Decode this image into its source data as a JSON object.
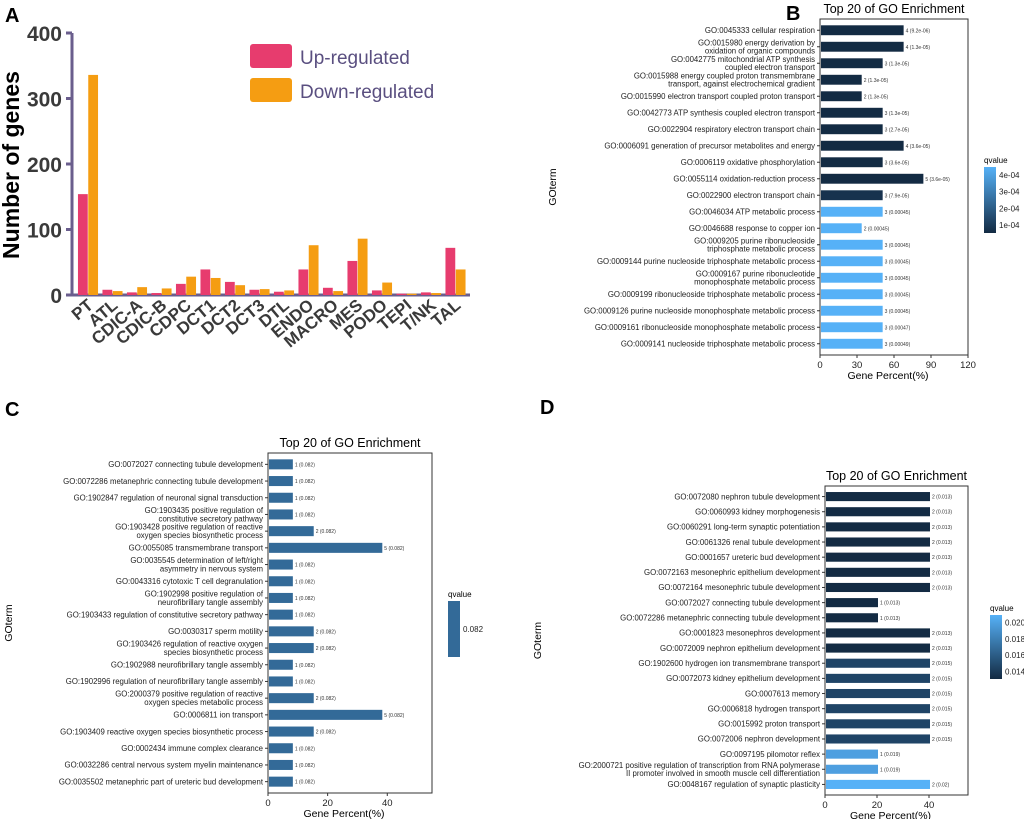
{
  "chart_data": [
    {
      "panel": "A",
      "type": "bar",
      "title": "",
      "xlabel": "",
      "ylabel": "Number of genes",
      "ylim": [
        0,
        400
      ],
      "yticks": [
        "0",
        "100",
        "200",
        "300",
        "400"
      ],
      "categories": [
        "PT",
        "ATL",
        "CDIC-A",
        "CDIC-B",
        "CDPC",
        "DCT1",
        "DCT2",
        "DCT3",
        "DTL",
        "ENDO",
        "MACRO",
        "MES",
        "PODO",
        "TEPI",
        "T/NK",
        "TAL"
      ],
      "series": [
        {
          "name": "Up-regulated",
          "color": "#e73c6e",
          "values": [
            154,
            8,
            4,
            3,
            17,
            39,
            20,
            8,
            5,
            39,
            11,
            52,
            7,
            2,
            4,
            72
          ]
        },
        {
          "name": "Down-regulated",
          "color": "#f59d12",
          "values": [
            336,
            6,
            12,
            10,
            28,
            26,
            15,
            9,
            7,
            76,
            6,
            86,
            19,
            2,
            3,
            39
          ]
        }
      ],
      "legend": "top-right"
    },
    {
      "panel": "B",
      "type": "bar",
      "orientation": "horizontal",
      "title": "Top 20 of GO Enrichment",
      "xlabel": "Gene Percent(%)",
      "ylabel": "GOterm",
      "xlim": [
        0,
        120
      ],
      "xticks": [
        "0",
        "30",
        "60",
        "90",
        "120"
      ],
      "legend_title": "qvalue",
      "legend_ticks": [
        "4e-04",
        "3e-04",
        "2e-04",
        "1e-04"
      ],
      "legend_colors": [
        "#56b1f7",
        "#132b43"
      ],
      "terms": [
        {
          "label": [
            "GO:0045333 cellular respiration"
          ],
          "value": 67,
          "annot": "4 (9.2e-06)",
          "color": "#132b43"
        },
        {
          "label": [
            "GO:0015980 energy derivation by",
            "oxidation of organic compounds"
          ],
          "value": 67,
          "annot": "4 (1.3e-05)",
          "color": "#132b43"
        },
        {
          "label": [
            "GO:0042775 mitochondrial ATP synthesis",
            "coupled electron transport"
          ],
          "value": 50,
          "annot": "3 (1.3e-05)",
          "color": "#132b43"
        },
        {
          "label": [
            "GO:0015988 energy coupled proton transmembrane",
            "transport, against electrochemical gradient"
          ],
          "value": 33,
          "annot": "2 (1.3e-05)",
          "color": "#132b43"
        },
        {
          "label": [
            "GO:0015990 electron transport coupled proton transport"
          ],
          "value": 33,
          "annot": "2 (1.3e-05)",
          "color": "#132b43"
        },
        {
          "label": [
            "GO:0042773 ATP synthesis coupled electron transport"
          ],
          "value": 50,
          "annot": "3 (1.3e-05)",
          "color": "#132b43"
        },
        {
          "label": [
            "GO:0022904 respiratory electron transport chain"
          ],
          "value": 50,
          "annot": "3 (2.7e-05)",
          "color": "#132b43"
        },
        {
          "label": [
            "GO:0006091 generation of precursor metabolites and energy"
          ],
          "value": 67,
          "annot": "4 (3.6e-05)",
          "color": "#132b43"
        },
        {
          "label": [
            "GO:0006119 oxidative phosphorylation"
          ],
          "value": 50,
          "annot": "3 (3.6e-05)",
          "color": "#132b43"
        },
        {
          "label": [
            "GO:0055114 oxidation-reduction process"
          ],
          "value": 83,
          "annot": "5 (3.6e-05)",
          "color": "#132b43"
        },
        {
          "label": [
            "GO:0022900 electron transport chain"
          ],
          "value": 50,
          "annot": "3 (7.9e-05)",
          "color": "#17324e"
        },
        {
          "label": [
            "GO:0046034 ATP metabolic process"
          ],
          "value": 50,
          "annot": "3 (0.00045)",
          "color": "#56b1f7"
        },
        {
          "label": [
            "GO:0046688 response to copper ion"
          ],
          "value": 33,
          "annot": "2 (0.00045)",
          "color": "#56b1f7"
        },
        {
          "label": [
            "GO:0009205 purine ribonucleoside",
            "triphosphate metabolic process"
          ],
          "value": 50,
          "annot": "3 (0.00045)",
          "color": "#56b1f7"
        },
        {
          "label": [
            "GO:0009144 purine nucleoside triphosphate metabolic process"
          ],
          "value": 50,
          "annot": "3 (0.00045)",
          "color": "#56b1f7"
        },
        {
          "label": [
            "GO:0009167 purine ribonucleotide",
            "monophosphate metabolic process"
          ],
          "value": 50,
          "annot": "3 (0.00045)",
          "color": "#56b1f7"
        },
        {
          "label": [
            "GO:0009199 ribonucleoside triphosphate metabolic process"
          ],
          "value": 50,
          "annot": "3 (0.00045)",
          "color": "#56b1f7"
        },
        {
          "label": [
            "GO:0009126 purine nucleoside monophosphate metabolic process"
          ],
          "value": 50,
          "annot": "3 (0.00045)",
          "color": "#56b1f7"
        },
        {
          "label": [
            "GO:0009161 ribonucleoside monophosphate metabolic process"
          ],
          "value": 50,
          "annot": "3 (0.00047)",
          "color": "#56b1f7"
        },
        {
          "label": [
            "GO:0009141 nucleoside triphosphate metabolic process"
          ],
          "value": 50,
          "annot": "3 (0.00049)",
          "color": "#56b1f7"
        }
      ]
    },
    {
      "panel": "C",
      "type": "bar",
      "orientation": "horizontal",
      "title": "Top 20 of GO Enrichment",
      "xlabel": "Gene Percent(%)",
      "ylabel": "GOterm",
      "xlim": [
        0,
        55
      ],
      "xticks": [
        "0",
        "20",
        "40"
      ],
      "legend_title": "qvalue",
      "legend_ticks": [
        "0.082"
      ],
      "legend_colors": [
        "#336a98",
        "#336a98"
      ],
      "terms": [
        {
          "label": [
            "GO:0072027 connecting tubule development"
          ],
          "value": 8,
          "annot": "1 (0.082)",
          "color": "#336a98"
        },
        {
          "label": [
            "GO:0072286 metanephric connecting tubule development"
          ],
          "value": 8,
          "annot": "1 (0.082)",
          "color": "#336a98"
        },
        {
          "label": [
            "GO:1902847 regulation of neuronal signal transduction"
          ],
          "value": 8,
          "annot": "1 (0.082)",
          "color": "#336a98"
        },
        {
          "label": [
            "GO:1903435 positive regulation of",
            "constitutive secretory pathway"
          ],
          "value": 8,
          "annot": "1 (0.082)",
          "color": "#336a98"
        },
        {
          "label": [
            "GO:1903428 positive regulation of reactive",
            "oxygen species biosynthetic process"
          ],
          "value": 15,
          "annot": "2 (0.082)",
          "color": "#336a98"
        },
        {
          "label": [
            "GO:0055085 transmembrane transport"
          ],
          "value": 38,
          "annot": "5 (0.082)",
          "color": "#336a98"
        },
        {
          "label": [
            "GO:0035545 determination of left/right",
            "asymmetry in nervous system"
          ],
          "value": 8,
          "annot": "1 (0.082)",
          "color": "#336a98"
        },
        {
          "label": [
            "GO:0043316 cytotoxic T cell degranulation"
          ],
          "value": 8,
          "annot": "1 (0.082)",
          "color": "#336a98"
        },
        {
          "label": [
            "GO:1902998 positive regulation of",
            "neurofibrillary tangle assembly"
          ],
          "value": 8,
          "annot": "1 (0.082)",
          "color": "#336a98"
        },
        {
          "label": [
            "GO:1903433 regulation of constitutive secretory pathway"
          ],
          "value": 8,
          "annot": "1 (0.082)",
          "color": "#336a98"
        },
        {
          "label": [
            "GO:0030317 sperm motility"
          ],
          "value": 15,
          "annot": "2 (0.082)",
          "color": "#336a98"
        },
        {
          "label": [
            "GO:1903426 regulation of reactive oxygen",
            "species biosynthetic process"
          ],
          "value": 15,
          "annot": "2 (0.082)",
          "color": "#336a98"
        },
        {
          "label": [
            "GO:1902988 neurofibrillary tangle assembly"
          ],
          "value": 8,
          "annot": "1 (0.082)",
          "color": "#336a98"
        },
        {
          "label": [
            "GO:1902996 regulation of neurofibrillary tangle assembly"
          ],
          "value": 8,
          "annot": "1 (0.082)",
          "color": "#336a98"
        },
        {
          "label": [
            "GO:2000379 positive regulation of reactive",
            "oxygen species metabolic process"
          ],
          "value": 15,
          "annot": "2 (0.082)",
          "color": "#336a98"
        },
        {
          "label": [
            "GO:0006811 ion transport"
          ],
          "value": 38,
          "annot": "5 (0.082)",
          "color": "#336a98"
        },
        {
          "label": [
            "GO:1903409 reactive oxygen species biosynthetic process"
          ],
          "value": 15,
          "annot": "2 (0.082)",
          "color": "#336a98"
        },
        {
          "label": [
            "GO:0002434 immune complex clearance"
          ],
          "value": 8,
          "annot": "1 (0.082)",
          "color": "#336a98"
        },
        {
          "label": [
            "GO:0032286 central nervous system myelin maintenance"
          ],
          "value": 8,
          "annot": "1 (0.082)",
          "color": "#336a98"
        },
        {
          "label": [
            "GO:0035502 metanephric part of ureteric bud development"
          ],
          "value": 8,
          "annot": "1 (0.082)",
          "color": "#336a98"
        }
      ]
    },
    {
      "panel": "D",
      "type": "bar",
      "orientation": "horizontal",
      "title": "Top 20 of GO Enrichment",
      "xlabel": "Gene Percent(%)",
      "ylabel": "GOterm",
      "xlim": [
        0,
        55
      ],
      "xticks": [
        "0",
        "20",
        "40"
      ],
      "legend_title": "qvalue",
      "legend_ticks": [
        "0.020",
        "0.018",
        "0.016",
        "0.014"
      ],
      "legend_colors": [
        "#56b1f7",
        "#132b43"
      ],
      "terms": [
        {
          "label": [
            "GO:0072080 nephron tubule development"
          ],
          "value": 40,
          "annot": "2 (0.013)",
          "color": "#132b43"
        },
        {
          "label": [
            "GO:0060993 kidney morphogenesis"
          ],
          "value": 40,
          "annot": "2 (0.013)",
          "color": "#132b43"
        },
        {
          "label": [
            "GO:0060291 long-term synaptic potentiation"
          ],
          "value": 40,
          "annot": "2 (0.013)",
          "color": "#132b43"
        },
        {
          "label": [
            "GO:0061326 renal tubule development"
          ],
          "value": 40,
          "annot": "2 (0.013)",
          "color": "#132b43"
        },
        {
          "label": [
            "GO:0001657 ureteric bud development"
          ],
          "value": 40,
          "annot": "2 (0.013)",
          "color": "#132b43"
        },
        {
          "label": [
            "GO:0072163 mesonephric epithelium development"
          ],
          "value": 40,
          "annot": "2 (0.013)",
          "color": "#132b43"
        },
        {
          "label": [
            "GO:0072164 mesonephric tubule development"
          ],
          "value": 40,
          "annot": "2 (0.013)",
          "color": "#132b43"
        },
        {
          "label": [
            "GO:0072027 connecting tubule development"
          ],
          "value": 20,
          "annot": "1 (0.013)",
          "color": "#132b43"
        },
        {
          "label": [
            "GO:0072286 metanephric connecting tubule development"
          ],
          "value": 20,
          "annot": "1 (0.013)",
          "color": "#132b43"
        },
        {
          "label": [
            "GO:0001823 mesonephros development"
          ],
          "value": 40,
          "annot": "2 (0.013)",
          "color": "#132b43"
        },
        {
          "label": [
            "GO:0072009 nephron epithelium development"
          ],
          "value": 40,
          "annot": "2 (0.013)",
          "color": "#132b43"
        },
        {
          "label": [
            "GO:1902600 hydrogen ion transmembrane transport"
          ],
          "value": 40,
          "annot": "2 (0.015)",
          "color": "#1f4466"
        },
        {
          "label": [
            "GO:0072073 kidney epithelium development"
          ],
          "value": 40,
          "annot": "2 (0.015)",
          "color": "#1f4466"
        },
        {
          "label": [
            "GO:0007613 memory"
          ],
          "value": 40,
          "annot": "2 (0.015)",
          "color": "#1f4466"
        },
        {
          "label": [
            "GO:0006818 hydrogen transport"
          ],
          "value": 40,
          "annot": "2 (0.015)",
          "color": "#1f4466"
        },
        {
          "label": [
            "GO:0015992 proton transport"
          ],
          "value": 40,
          "annot": "2 (0.015)",
          "color": "#1f4466"
        },
        {
          "label": [
            "GO:0072006 nephron development"
          ],
          "value": 40,
          "annot": "2 (0.015)",
          "color": "#1f4466"
        },
        {
          "label": [
            "GO:0097195 pilomotor reflex"
          ],
          "value": 20,
          "annot": "1 (0.019)",
          "color": "#4e9fe0"
        },
        {
          "label": [
            "GO:2000721 positive regulation of transcription from RNA polymerase",
            "II promoter involved in smooth muscle cell differentiation"
          ],
          "value": 20,
          "annot": "1 (0.019)",
          "color": "#4e9fe0"
        },
        {
          "label": [
            "GO:0048167 regulation of synaptic plasticity"
          ],
          "value": 40,
          "annot": "2 (0.02)",
          "color": "#56b1f7"
        }
      ]
    }
  ]
}
